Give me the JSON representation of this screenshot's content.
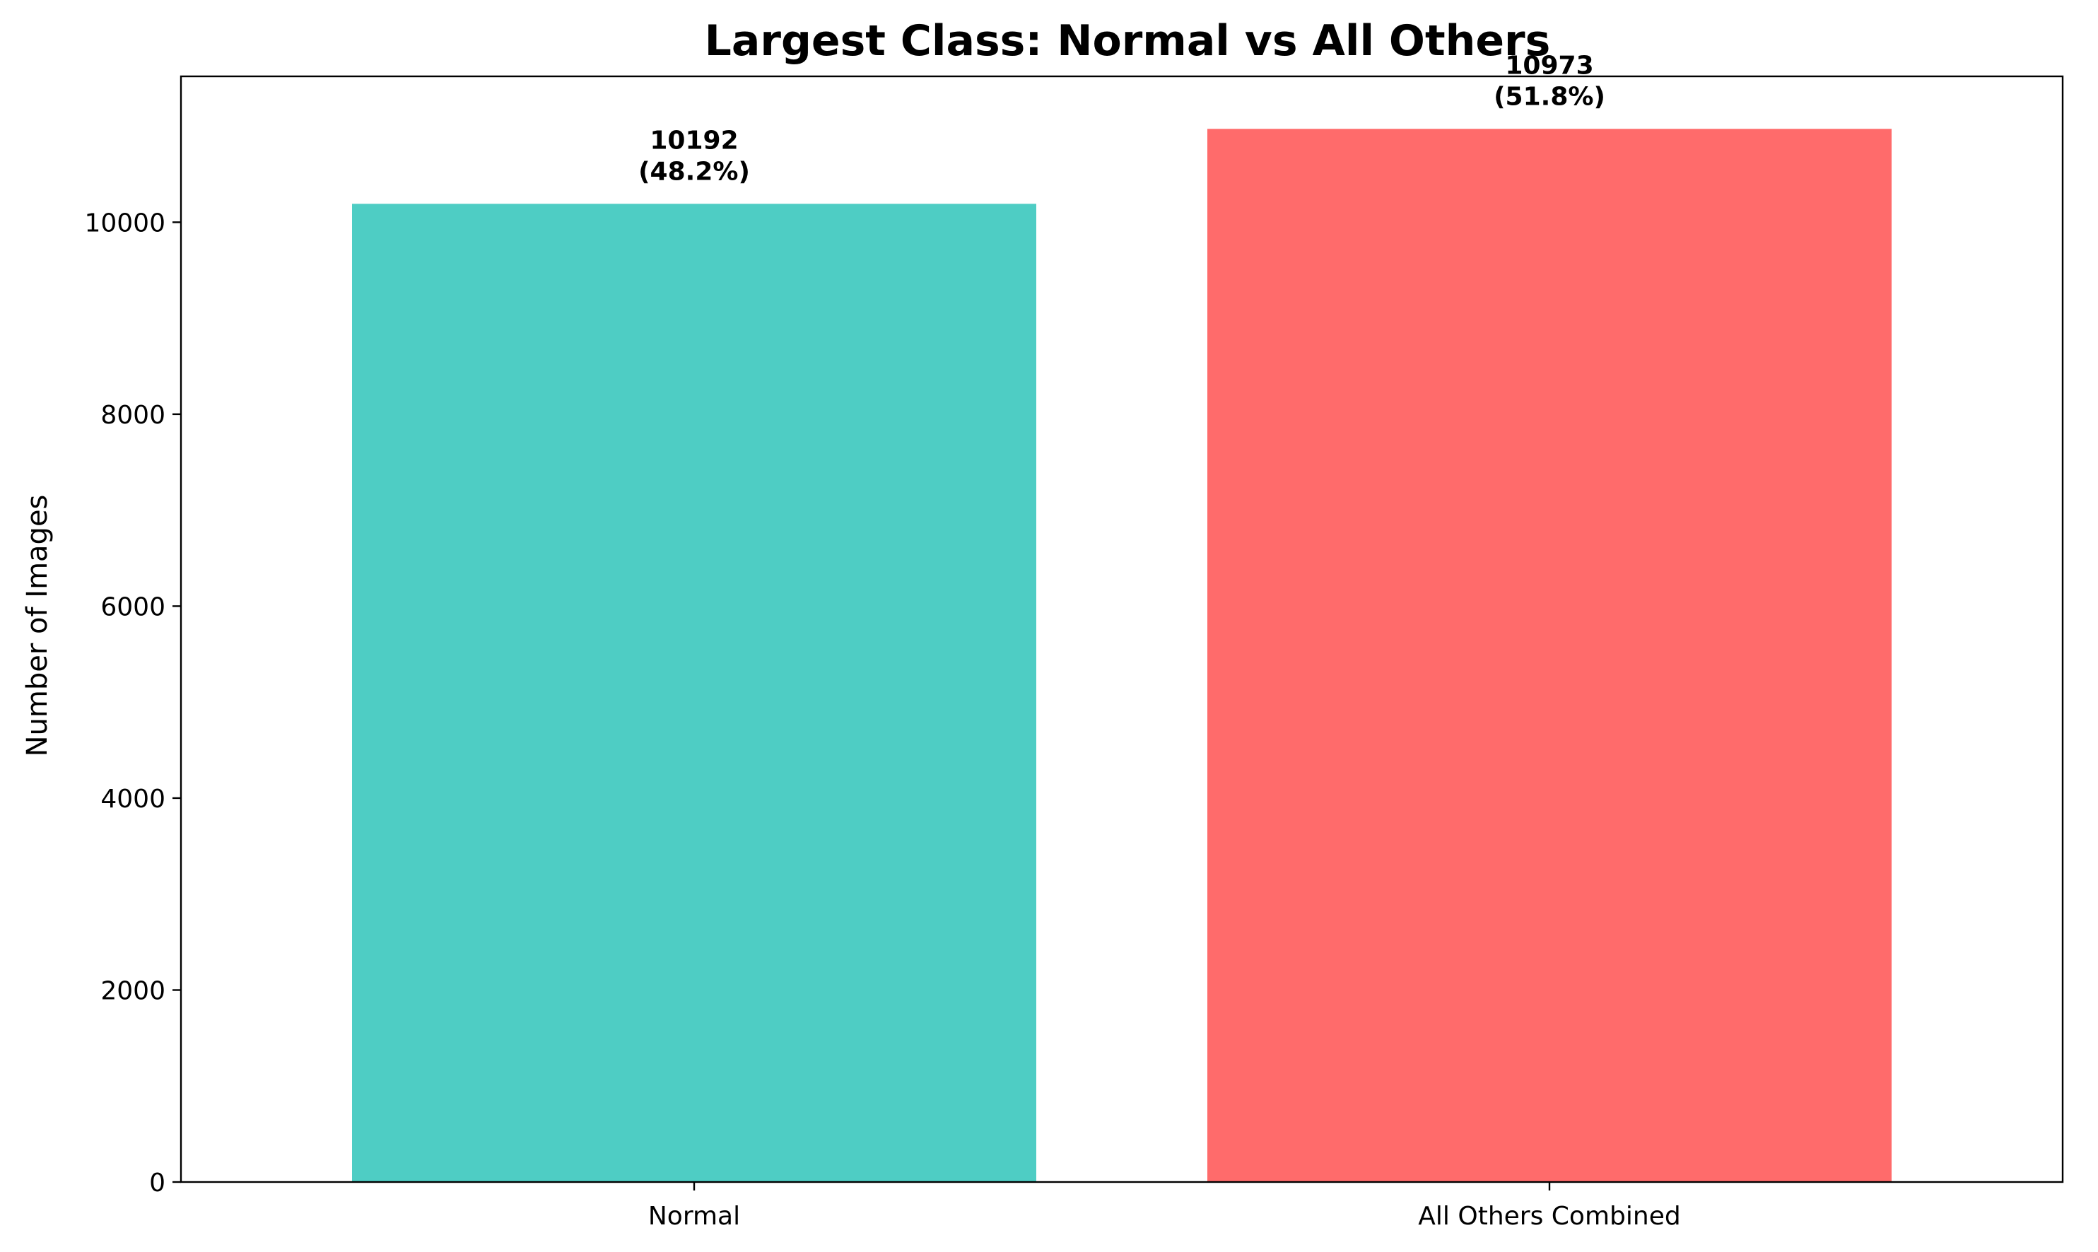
{
  "chart_data": {
    "type": "bar",
    "title": "Largest Class: Normal vs All Others",
    "xlabel": "",
    "ylabel": "Number of Images",
    "categories": [
      "Normal",
      "All Others Combined"
    ],
    "values": [
      10192,
      10973
    ],
    "value_labels": [
      "10192",
      "10973"
    ],
    "percent_labels": [
      "(48.2%)",
      "(51.8%)"
    ],
    "colors": [
      "#4ECDC4",
      "#FF6B6B"
    ],
    "ylim": [
      0,
      11520
    ],
    "yticks": [
      0,
      2000,
      4000,
      6000,
      8000,
      10000
    ],
    "ytick_labels": [
      "0",
      "2000",
      "4000",
      "6000",
      "8000",
      "10000"
    ],
    "grid": false,
    "legend": "none"
  }
}
